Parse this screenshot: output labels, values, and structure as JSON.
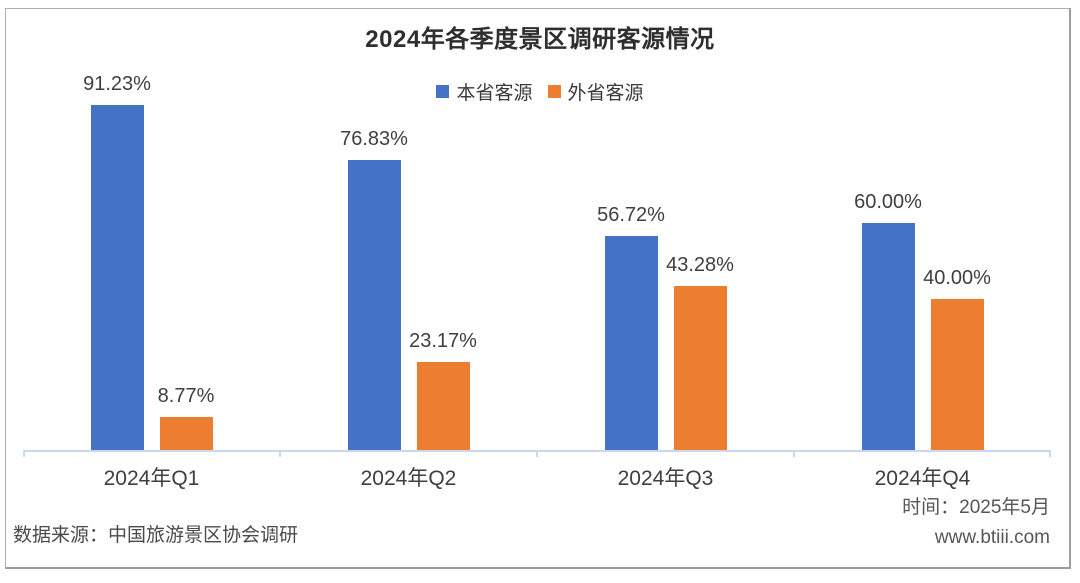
{
  "title": "2024年各季度景区调研客源情况",
  "chart_data": {
    "type": "bar",
    "categories": [
      "2024年Q1",
      "2024年Q2",
      "2024年Q3",
      "2024年Q4"
    ],
    "series": [
      {
        "name": "本省客源",
        "color": "#4472C4",
        "values": [
          91.23,
          76.83,
          56.72,
          60.0
        ],
        "labels": [
          "91.23%",
          "76.83%",
          "56.72%",
          "60.00%"
        ]
      },
      {
        "name": "外省客源",
        "color": "#ED7D31",
        "values": [
          8.77,
          23.17,
          43.28,
          40.0
        ],
        "labels": [
          "8.77%",
          "23.17%",
          "43.28%",
          "40.00%"
        ]
      }
    ],
    "xlabel": "",
    "ylabel": "",
    "ylim": [
      0,
      100
    ],
    "grid": false,
    "axis_line_color": "#ccd7ec",
    "legend_position": "top-center",
    "value_labels_shown": true
  },
  "footer": {
    "source": "数据来源：中国旅游景区协会调研",
    "date": "时间：2025年5月",
    "website": "www.btiii.com"
  }
}
